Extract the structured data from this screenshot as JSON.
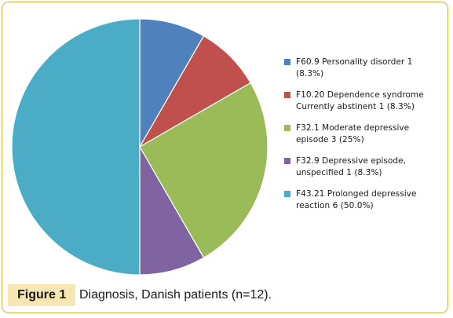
{
  "chart_data": {
    "type": "pie",
    "slices": [
      {
        "label": "F60.9 Personality disorder 1 (8.3%)",
        "value": 1,
        "percent": 8.3,
        "color": "#4f81bd"
      },
      {
        "label": "F10.20 Dependence syndrome Currently abstinent 1 (8.3%)",
        "value": 1,
        "percent": 8.3,
        "color": "#c0504d"
      },
      {
        "label": "F32.1 Moderate depressive episode 3 (25%)",
        "value": 3,
        "percent": 25,
        "color": "#9bbb59"
      },
      {
        "label": "F32.9 Depressive episode, unspecified 1 (8.3%)",
        "value": 1,
        "percent": 8.3,
        "color": "#8064a2"
      },
      {
        "label": "F43.21 Prolonged depressive reaction 6 (50.0%)",
        "value": 6,
        "percent": 50.0,
        "color": "#4bacc6"
      }
    ],
    "start_angle": "12 o'clock",
    "direction": "clockwise",
    "legend_position": "right"
  },
  "caption": {
    "label": "Figure 1",
    "text": "Diagnosis, Danish patients (n=12)."
  },
  "colors": {
    "frame_border": "#d9ab3c",
    "caption_label_bg": "#f6e6b4"
  }
}
